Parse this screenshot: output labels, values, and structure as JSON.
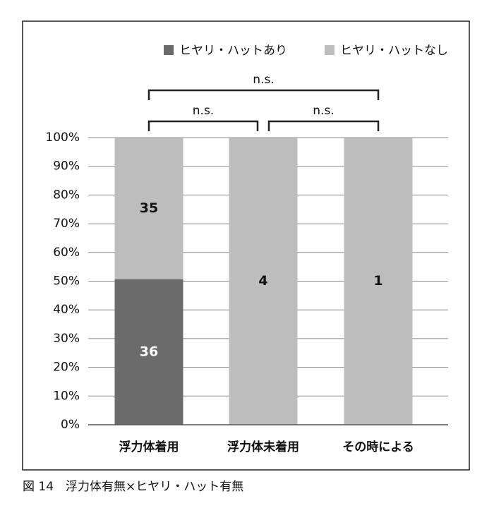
{
  "chart_data": {
    "type": "bar",
    "stacking": "percent",
    "categories": [
      "浮力体着用",
      "浮力体未着用",
      "その時による"
    ],
    "series": [
      {
        "name": "ヒヤリ・ハットあり",
        "color": "#6b6b6b",
        "label_color": "#ffffff",
        "values": [
          36,
          0,
          0
        ]
      },
      {
        "name": "ヒヤリ・ハットなし",
        "color": "#bdbdbd",
        "label_color": "#111111",
        "values": [
          35,
          4,
          1
        ]
      }
    ],
    "ylim": [
      0,
      100
    ],
    "yticks": [
      {
        "value": 0,
        "label": "0%"
      },
      {
        "value": 10,
        "label": "10%"
      },
      {
        "value": 20,
        "label": "20%"
      },
      {
        "value": 30,
        "label": "30%"
      },
      {
        "value": 40,
        "label": "40%"
      },
      {
        "value": 50,
        "label": "50%"
      },
      {
        "value": 60,
        "label": "60%"
      },
      {
        "value": 70,
        "label": "70%"
      },
      {
        "value": 80,
        "label": "80%"
      },
      {
        "value": 90,
        "label": "90%"
      },
      {
        "value": 100,
        "label": "100%"
      }
    ],
    "grid": true,
    "annotations": [
      "n.s.",
      "n.s.",
      "n.s."
    ],
    "caption": "図 14　浮力体有無×ヒヤリ・ハット有無"
  }
}
